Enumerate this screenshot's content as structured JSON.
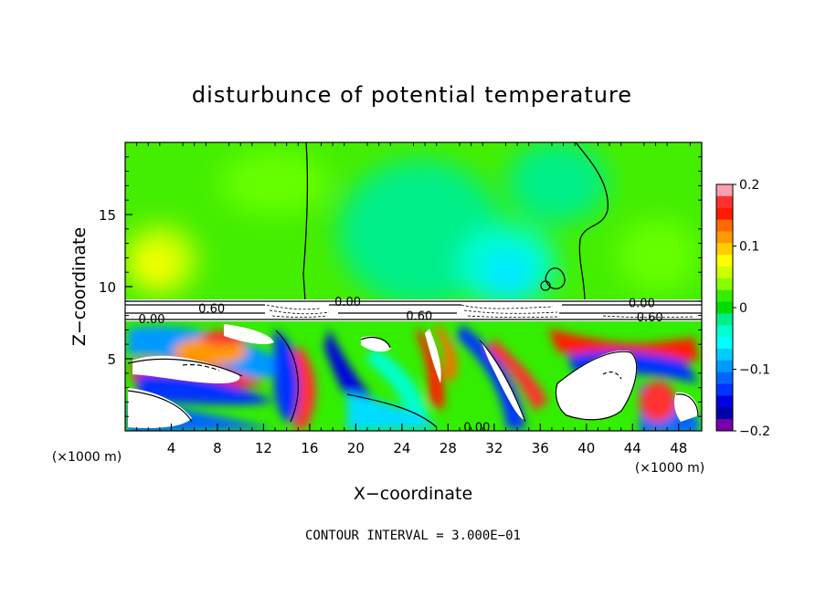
{
  "chart_data": {
    "type": "heatmap",
    "title": "disturbunce of potential temperature",
    "xlabel": "X−coordinate",
    "ylabel": "Z−coordinate",
    "x_unit_left": "(×1000 m)",
    "x_unit_right": "(×1000 m)",
    "xlim": [
      0,
      50
    ],
    "ylim": [
      0,
      20
    ],
    "x_ticks": [
      4,
      8,
      12,
      16,
      20,
      24,
      28,
      32,
      36,
      40,
      44,
      48
    ],
    "x_tick_labels": [
      "4",
      "8",
      "12",
      "16",
      "20",
      "24",
      "28",
      "32",
      "36",
      "40",
      "44",
      "48"
    ],
    "y_ticks": [
      5,
      10,
      15
    ],
    "y_tick_labels": [
      "5",
      "10",
      "15"
    ],
    "footer": "CONTOUR INTERVAL = 3.000E−01",
    "colorbar": {
      "range": [
        -0.2,
        0.2
      ],
      "tick_values": [
        0.2,
        0.1,
        0,
        -0.1,
        -0.2
      ],
      "tick_labels": [
        "0.2",
        "0.1",
        "0",
        "−0.1",
        "−0.2"
      ],
      "colors": [
        "#f9a0b0",
        "#ff3030",
        "#ff1a00",
        "#ff6a00",
        "#ff9900",
        "#ffcc00",
        "#ffff00",
        "#ccff00",
        "#88ff00",
        "#33ee00",
        "#00dd00",
        "#00ee88",
        "#00ffcc",
        "#00ffff",
        "#00ccff",
        "#0099ff",
        "#0066ff",
        "#0033ff",
        "#0000e0",
        "#0000aa",
        "#7700aa"
      ]
    },
    "contour_labels": [
      {
        "text": "0.60",
        "x": 7.5,
        "z": 8.5
      },
      {
        "text": "0.00",
        "x": 2.3,
        "z": 7.8
      },
      {
        "text": "0.00",
        "x": 19.3,
        "z": 9.0
      },
      {
        "text": "0.60",
        "x": 25.5,
        "z": 8.0
      },
      {
        "text": "0.00",
        "x": 30.5,
        "z": 0.3
      },
      {
        "text": "0.00",
        "x": 44.8,
        "z": 8.9
      },
      {
        "text": "0.60",
        "x": 45.5,
        "z": 7.9
      }
    ]
  }
}
